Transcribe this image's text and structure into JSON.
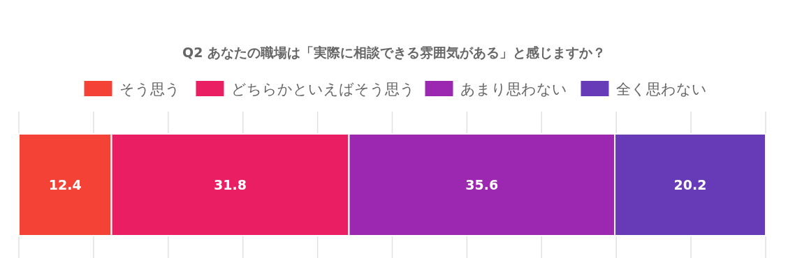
{
  "chart_data": {
    "type": "bar",
    "title": "Q2 あなたの職場は「実際に相談できる雰囲気がある」と感じますか？",
    "orientation": "horizontal",
    "stacked": true,
    "categories": [
      null
    ],
    "series": [
      {
        "name": "そう思う",
        "color": "#f44336",
        "values": [
          12.4
        ]
      },
      {
        "name": "どちらかといえばそう思う",
        "color": "#e91e63",
        "values": [
          31.8
        ]
      },
      {
        "name": "あまり思わない",
        "color": "#9c27b0",
        "values": [
          35.6
        ]
      },
      {
        "name": "全く思わない",
        "color": "#673ab7",
        "values": [
          20.2
        ]
      }
    ],
    "xlim": [
      0,
      100
    ],
    "xticks": [
      {
        "value": 0,
        "label": null
      },
      {
        "value": 10,
        "label": null
      },
      {
        "value": 20,
        "label": null
      },
      {
        "value": 30,
        "label": null
      },
      {
        "value": 40,
        "label": null
      },
      {
        "value": 50,
        "label": null
      },
      {
        "value": 60,
        "label": null
      },
      {
        "value": 70,
        "label": null
      },
      {
        "value": 80,
        "label": null
      },
      {
        "value": 90,
        "label": null
      },
      {
        "value": 100,
        "label": null
      }
    ],
    "grid": "x",
    "legend": "top",
    "data_labels": true
  }
}
